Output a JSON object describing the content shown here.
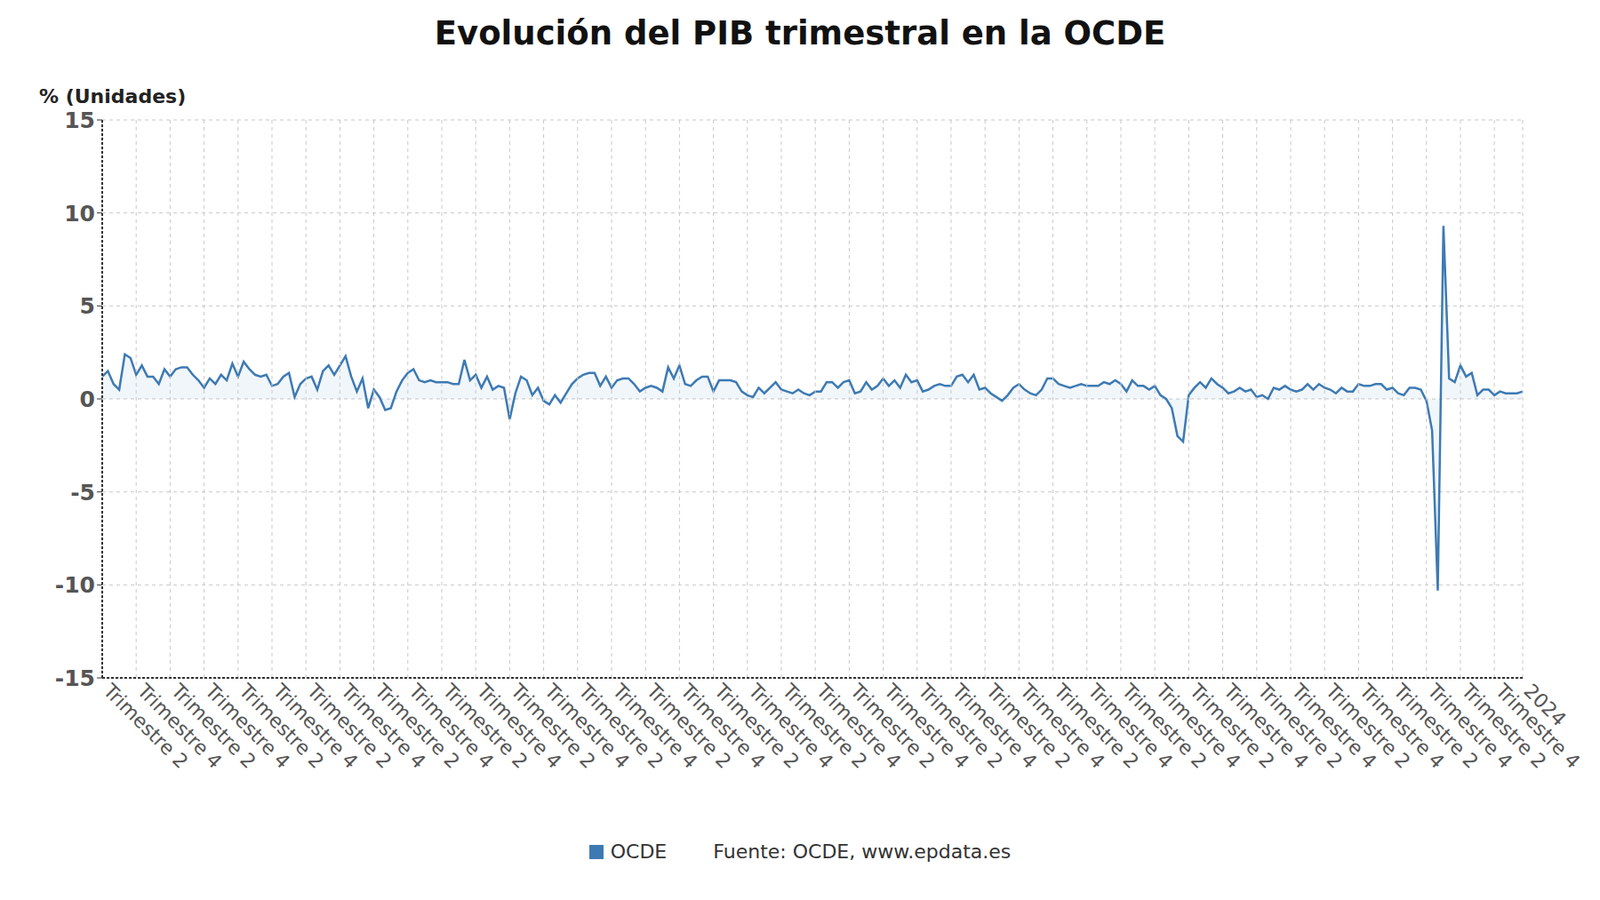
{
  "chart_data": {
    "type": "area",
    "title": "Evolución del PIB trimestral en la OCDE",
    "y_label": "% (Unidades)",
    "source": "Fuente: OCDE, www.epdata.es",
    "grid": true,
    "ylim": [
      -15,
      15
    ],
    "yticks": [
      -15,
      -10,
      -5,
      0,
      5,
      10,
      15
    ],
    "categories": [
      "Trimestre 2",
      null,
      null,
      null,
      null,
      null,
      "Trimestre 4",
      null,
      null,
      null,
      null,
      null,
      "Trimestre 2",
      null,
      null,
      null,
      null,
      null,
      "Trimestre 4",
      null,
      null,
      null,
      null,
      null,
      "Trimestre 2",
      null,
      null,
      null,
      null,
      null,
      "Trimestre 4",
      null,
      null,
      null,
      null,
      null,
      "Trimestre 2",
      null,
      null,
      null,
      null,
      null,
      "Trimestre 4",
      null,
      null,
      null,
      null,
      null,
      "Trimestre 2",
      null,
      null,
      null,
      null,
      null,
      "Trimestre 4",
      null,
      null,
      null,
      null,
      null,
      "Trimestre 2",
      null,
      null,
      null,
      null,
      null,
      "Trimestre 4",
      null,
      null,
      null,
      null,
      null,
      "Trimestre 2",
      null,
      null,
      null,
      null,
      null,
      "Trimestre 4",
      null,
      null,
      null,
      null,
      null,
      "Trimestre 2",
      null,
      null,
      null,
      null,
      null,
      "Trimestre 4",
      null,
      null,
      null,
      null,
      null,
      "Trimestre 2",
      null,
      null,
      null,
      null,
      null,
      "Trimestre 4",
      null,
      null,
      null,
      null,
      null,
      "Trimestre 2",
      null,
      null,
      null,
      null,
      null,
      "Trimestre 4",
      null,
      null,
      null,
      null,
      null,
      "Trimestre 2",
      null,
      null,
      null,
      null,
      null,
      "Trimestre 4",
      null,
      null,
      null,
      null,
      null,
      "Trimestre 2",
      null,
      null,
      null,
      null,
      null,
      "Trimestre 4",
      null,
      null,
      null,
      null,
      null,
      "Trimestre 2",
      null,
      null,
      null,
      null,
      null,
      "Trimestre 4",
      null,
      null,
      null,
      null,
      null,
      "Trimestre 2",
      null,
      null,
      null,
      null,
      null,
      "Trimestre 4",
      null,
      null,
      null,
      null,
      null,
      "Trimestre 2",
      null,
      null,
      null,
      null,
      null,
      "Trimestre 4",
      null,
      null,
      null,
      null,
      null,
      "Trimestre 2",
      null,
      null,
      null,
      null,
      null,
      "Trimestre 4",
      null,
      null,
      null,
      null,
      null,
      "Trimestre 2",
      null,
      null,
      null,
      null,
      null,
      "Trimestre 4",
      null,
      null,
      null,
      null,
      null,
      "Trimestre 2",
      null,
      null,
      null,
      null,
      null,
      "Trimestre 4",
      null,
      null,
      null,
      null,
      null,
      "Trimestre 2",
      null,
      null,
      null,
      null,
      null,
      "Trimestre 4",
      null,
      null,
      null,
      null,
      null,
      "Trimestre 2",
      null,
      null,
      null,
      null,
      null,
      "Trimestre 4",
      null,
      null,
      null,
      null,
      null,
      "Trimestre 2",
      null,
      null,
      null,
      null,
      null,
      "Trimestre 4",
      null,
      null,
      null,
      null,
      "2024"
    ],
    "series": [
      {
        "name": "OCDE",
        "color": "#3d7ab3",
        "values": [
          1.2,
          1.5,
          0.8,
          0.5,
          2.4,
          2.2,
          1.3,
          1.8,
          1.2,
          1.2,
          0.8,
          1.6,
          1.2,
          1.6,
          1.7,
          1.7,
          1.3,
          1.0,
          0.6,
          1.1,
          0.8,
          1.3,
          1.0,
          1.9,
          1.2,
          2.0,
          1.6,
          1.3,
          1.2,
          1.3,
          0.7,
          0.8,
          1.2,
          1.4,
          0.1,
          0.8,
          1.1,
          1.2,
          0.5,
          1.5,
          1.8,
          1.3,
          1.8,
          2.3,
          1.2,
          0.4,
          1.1,
          -0.5,
          0.5,
          0.1,
          -0.6,
          -0.5,
          0.4,
          1.0,
          1.4,
          1.6,
          1.0,
          0.9,
          1.0,
          0.9,
          0.9,
          0.9,
          0.8,
          0.8,
          2.1,
          1.0,
          1.3,
          0.6,
          1.2,
          0.5,
          0.7,
          0.6,
          -1.1,
          0.3,
          1.2,
          1.0,
          0.2,
          0.6,
          -0.1,
          -0.3,
          0.2,
          -0.2,
          0.3,
          0.8,
          1.1,
          1.3,
          1.4,
          1.4,
          0.7,
          1.2,
          0.6,
          1.0,
          1.1,
          1.1,
          0.8,
          0.4,
          0.6,
          0.7,
          0.6,
          0.4,
          1.7,
          1.1,
          1.8,
          0.8,
          0.7,
          1.0,
          1.2,
          1.2,
          0.4,
          1.0,
          1.0,
          1.0,
          0.9,
          0.4,
          0.2,
          0.1,
          0.6,
          0.3,
          0.6,
          0.9,
          0.5,
          0.4,
          0.3,
          0.5,
          0.3,
          0.2,
          0.4,
          0.4,
          0.9,
          0.9,
          0.6,
          0.9,
          1.0,
          0.3,
          0.4,
          0.9,
          0.5,
          0.7,
          1.1,
          0.7,
          1.0,
          0.6,
          1.3,
          0.9,
          1.0,
          0.4,
          0.5,
          0.7,
          0.8,
          0.7,
          0.7,
          1.2,
          1.3,
          0.9,
          1.3,
          0.5,
          0.6,
          0.3,
          0.1,
          -0.1,
          0.2,
          0.6,
          0.8,
          0.5,
          0.3,
          0.2,
          0.5,
          1.1,
          1.1,
          0.8,
          0.7,
          0.6,
          0.7,
          0.8,
          0.7,
          0.7,
          0.7,
          0.9,
          0.8,
          1.0,
          0.8,
          0.4,
          1.0,
          0.7,
          0.7,
          0.5,
          0.7,
          0.2,
          0.0,
          -0.5,
          -2.0,
          -2.3,
          0.2,
          0.6,
          0.9,
          0.6,
          1.1,
          0.8,
          0.6,
          0.3,
          0.4,
          0.6,
          0.4,
          0.5,
          0.1,
          0.2,
          0.0,
          0.6,
          0.5,
          0.7,
          0.5,
          0.4,
          0.5,
          0.8,
          0.5,
          0.8,
          0.6,
          0.5,
          0.3,
          0.6,
          0.4,
          0.4,
          0.8,
          0.7,
          0.7,
          0.8,
          0.8,
          0.5,
          0.6,
          0.3,
          0.2,
          0.6,
          0.6,
          0.5,
          -0.1,
          -1.7,
          -10.3,
          9.3,
          1.1,
          0.9,
          1.8,
          1.2,
          1.4,
          0.2,
          0.5,
          0.5,
          0.2,
          0.4,
          0.3,
          0.3,
          0.3,
          0.4
        ]
      }
    ]
  }
}
